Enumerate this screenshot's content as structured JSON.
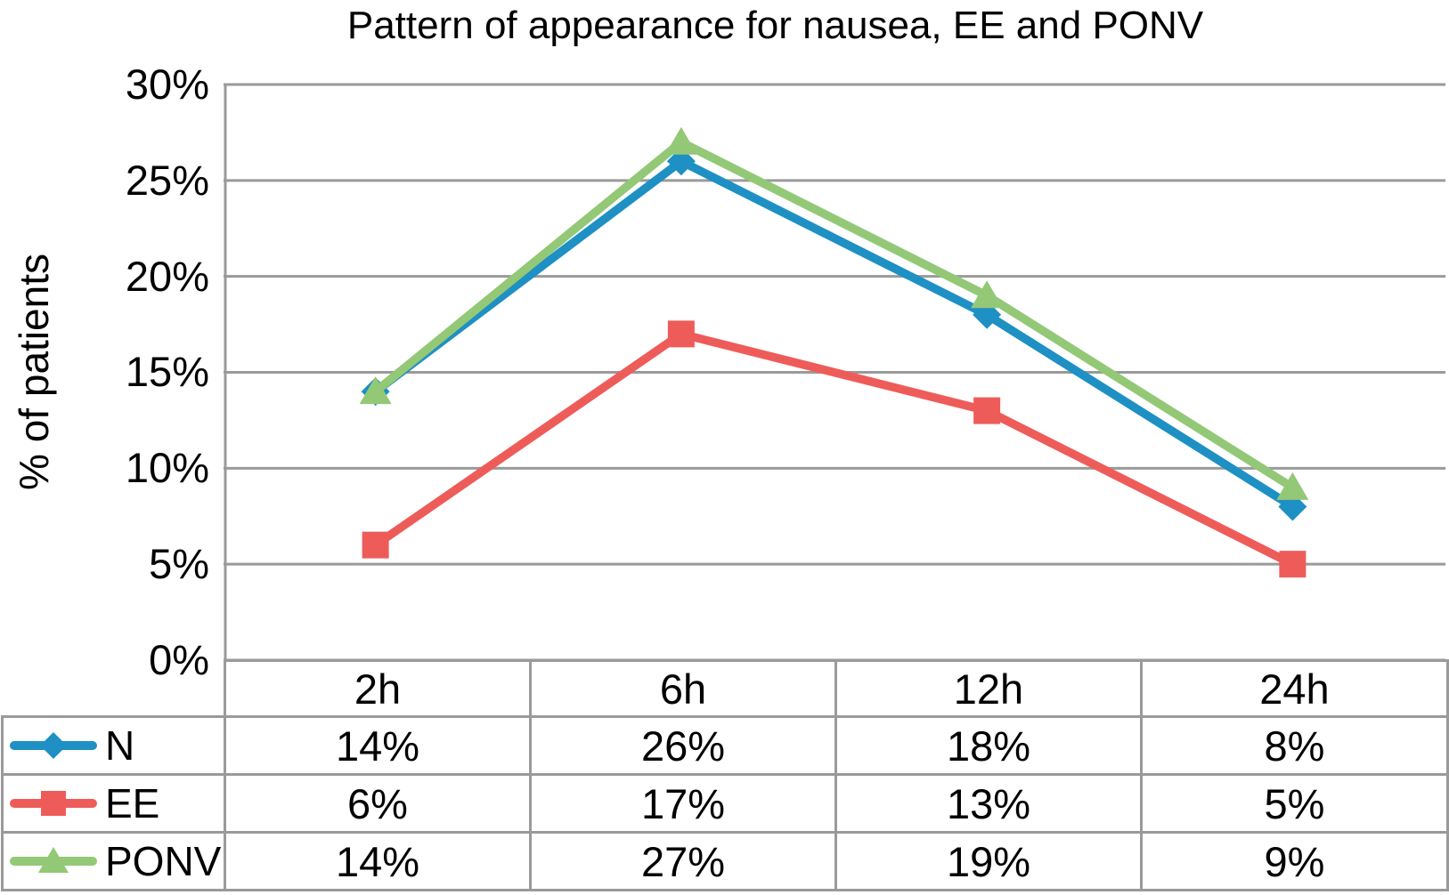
{
  "chart": {
    "title": "Pattern of appearance for nausea, EE and PONV",
    "ylabel": "% of patients"
  },
  "chart_data": {
    "type": "line",
    "title": "Pattern of appearance for nausea, EE and PONV",
    "xlabel": "",
    "ylabel": "% of patients",
    "x_categories": [
      "2h",
      "6h",
      "12h",
      "24h"
    ],
    "y_ticks": [
      "30%",
      "25%",
      "20%",
      "15%",
      "10%",
      "5%",
      "0%"
    ],
    "ylim": [
      0,
      30
    ],
    "y_tick_step": 5,
    "grid": true,
    "grid_color": "#9a9a9a",
    "legend_position": "table-left",
    "series": [
      {
        "name": "N",
        "marker": "diamond",
        "color": "#1E90C3",
        "values": [
          14,
          26,
          18,
          8
        ],
        "labels": [
          "14%",
          "26%",
          "18%",
          "8%"
        ]
      },
      {
        "name": "EE",
        "marker": "square",
        "color": "#EE5C59",
        "values": [
          6,
          17,
          13,
          5
        ],
        "labels": [
          "6%",
          "17%",
          "13%",
          "5%"
        ]
      },
      {
        "name": "PONV",
        "marker": "triangle",
        "color": "#93C877",
        "values": [
          14,
          27,
          19,
          9
        ],
        "labels": [
          "14%",
          "27%",
          "19%",
          "9%"
        ]
      }
    ]
  }
}
